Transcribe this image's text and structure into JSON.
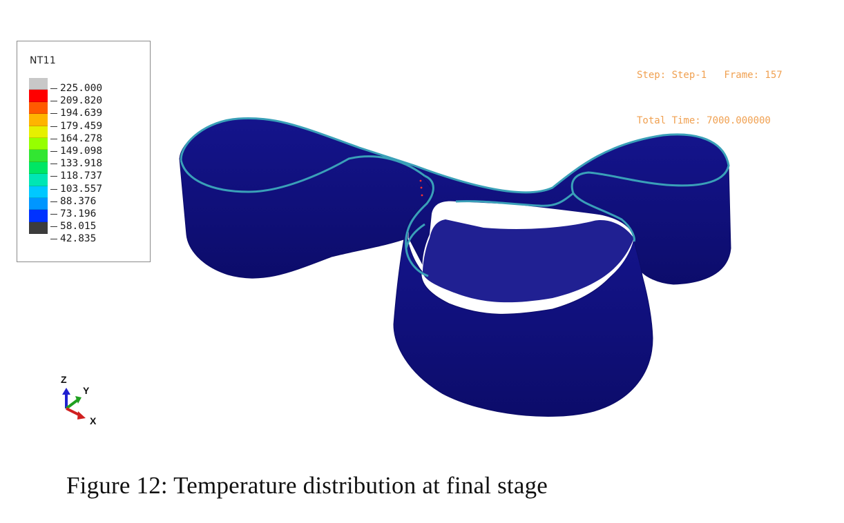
{
  "legend": {
    "title": "NT11",
    "colors": [
      "#c8c8c8",
      "#ff0000",
      "#ff5a00",
      "#ffb400",
      "#e6f000",
      "#96ff00",
      "#32e632",
      "#00e664",
      "#00e6b4",
      "#00c8ff",
      "#0096ff",
      "#0032ff",
      "#3c3c3c"
    ],
    "values": [
      "225.000",
      "209.820",
      "194.639",
      "179.459",
      "164.278",
      "149.098",
      "133.918",
      "118.737",
      "103.557",
      "88.376",
      "73.196",
      "58.015",
      "42.835"
    ]
  },
  "step_info": {
    "line1": "Step: Step-1   Frame: 157",
    "line2": "Total Time: 7000.000000"
  },
  "model_colors": {
    "wall": "#14148c",
    "wall_dark": "#0c0c6a",
    "top_edge": "#3aa0b8",
    "hot_spot": "#ff3030"
  },
  "triad": {
    "z": "Z",
    "y": "Y",
    "x": "X",
    "z_color": "#2020d0",
    "y_color": "#20a020",
    "x_color": "#d02020"
  },
  "caption": "Figure 12: Temperature distribution at final stage"
}
